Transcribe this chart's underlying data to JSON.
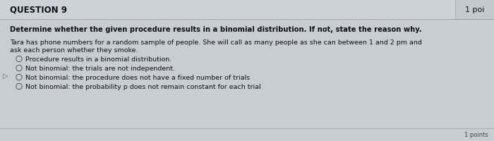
{
  "bg_color": "#c8cdd4",
  "panel_color": "#dce1e8",
  "header_color": "#cdd2d9",
  "right_panel_color": "#c4c9d0",
  "question_label": "QUESTION 9",
  "points_label": "1 poi",
  "bold_text": "Determine whether the given procedure results in a binomial distribution. If not, state the reason why.",
  "body_line1": "Tara has phone numbers for a random sample of people. She will call as many people as she can between 1 and 2 pm and",
  "body_line2": "ask each person whether they smoke.",
  "options": [
    "Procedure results in a binomial distribution.",
    "Not binomial: the trials are not independent.",
    "Not binomial: the procedure does not have a fixed number of trials",
    "Not binomial: the probability p does not remain constant for each trial"
  ],
  "bottom_label": "1 points",
  "font_color": "#111111",
  "header_font_color": "#111111",
  "circle_color": "#555555",
  "separator_color": "#999999",
  "figsize": [
    7.0,
    2.01
  ],
  "dpi": 100
}
